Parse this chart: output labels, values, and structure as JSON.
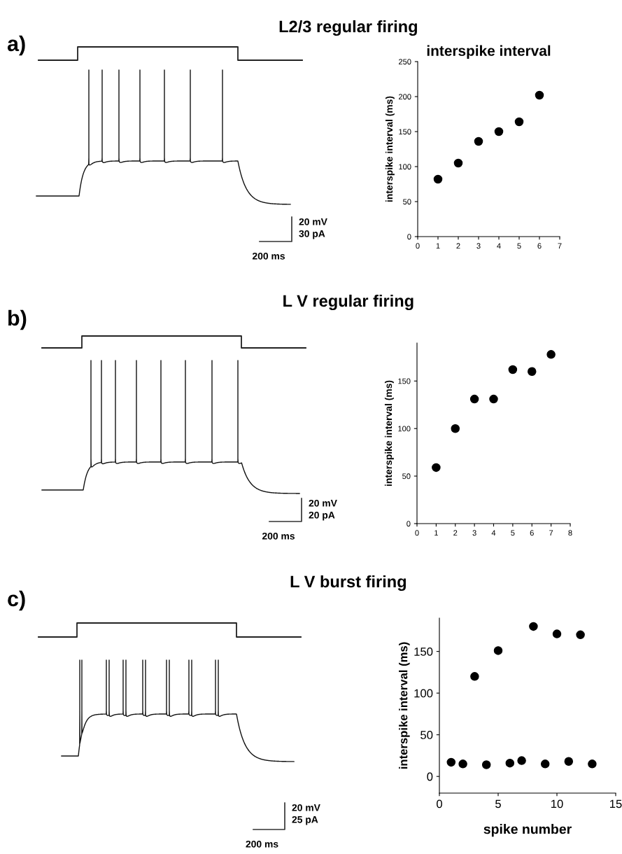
{
  "chart_data": [
    {
      "type": "other",
      "title": "L2/3 regular firing",
      "annotations": [
        "a)",
        "20 mV",
        "30 pA",
        "200 ms"
      ]
    },
    {
      "type": "scatter",
      "title": "interspike interval",
      "ylabel": "interspike interval (ms)",
      "x": [
        1,
        2,
        3,
        4,
        5,
        6
      ],
      "values": [
        82,
        105,
        136,
        150,
        164,
        202
      ],
      "color": "#000000",
      "marker": "circle",
      "xlim": [
        0,
        7
      ],
      "xticks": [
        0,
        1,
        2,
        3,
        4,
        5,
        6,
        7
      ],
      "ylim": [
        0,
        250
      ],
      "yticks": [
        0,
        50,
        100,
        150,
        200,
        250
      ]
    },
    {
      "type": "other",
      "title": "L V regular firing",
      "annotations": [
        "b)",
        "20 mV",
        "20 pA",
        "200 ms"
      ]
    },
    {
      "type": "scatter",
      "ylabel": "interspike interval (ms)",
      "x": [
        1,
        2,
        3,
        4,
        5,
        6,
        7
      ],
      "values": [
        59,
        100,
        131,
        131,
        162,
        160,
        178
      ],
      "color": "#000000",
      "marker": "circle",
      "xlim": [
        0,
        8
      ],
      "xticks": [
        0,
        1,
        2,
        3,
        4,
        5,
        6,
        7,
        8
      ],
      "ylim": [
        0,
        190
      ],
      "yticks": [
        0,
        50,
        100,
        150
      ]
    },
    {
      "type": "other",
      "title": "L V burst firing",
      "annotations": [
        "c)",
        "20 mV",
        "25 pA",
        "200 ms"
      ]
    },
    {
      "type": "scatter",
      "xlabel": "spike number",
      "ylabel": "interspike interval (ms)",
      "x": [
        1,
        2,
        3,
        4,
        5,
        6,
        7,
        8,
        9,
        10,
        11,
        12,
        13
      ],
      "values": [
        17,
        15,
        120,
        14,
        151,
        16,
        19,
        180,
        15,
        171,
        18,
        170,
        15
      ],
      "color": "#000000",
      "marker": "circle",
      "xlim": [
        0,
        15
      ],
      "xticks": [
        0,
        5,
        10,
        15
      ],
      "ylim": [
        -20,
        190
      ],
      "yticks": [
        0,
        50,
        100,
        150
      ]
    }
  ]
}
